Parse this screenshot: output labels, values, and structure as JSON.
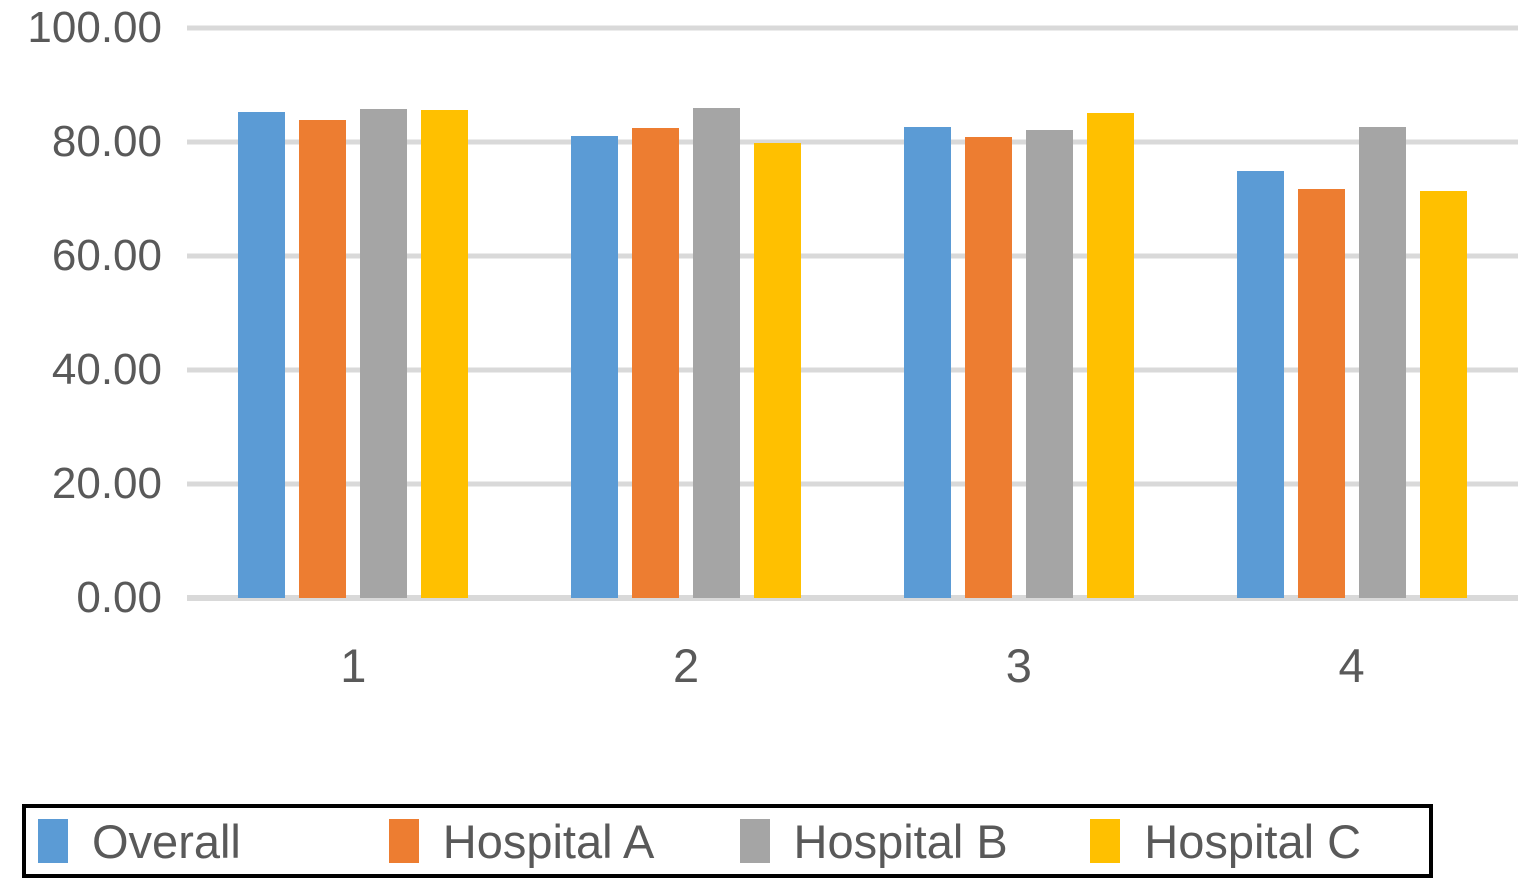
{
  "chart_data": {
    "type": "bar",
    "categories": [
      "1",
      "2",
      "3",
      "4"
    ],
    "series": [
      {
        "name": "Overall",
        "color": "#5B9BD5",
        "values": [
          85.2,
          81.1,
          82.7,
          74.9
        ]
      },
      {
        "name": "Hospital A",
        "color": "#ED7D31",
        "values": [
          83.8,
          82.5,
          80.8,
          71.7
        ]
      },
      {
        "name": "Hospital B",
        "color": "#A5A5A5",
        "values": [
          85.8,
          85.9,
          82.1,
          82.7
        ]
      },
      {
        "name": "Hospital C",
        "color": "#FFC000",
        "values": [
          85.7,
          79.8,
          85.1,
          71.4
        ]
      }
    ],
    "title": "",
    "xlabel": "",
    "ylabel": "",
    "ylim": [
      0,
      100
    ],
    "yticks": [
      {
        "value": 100,
        "label": "100.00"
      },
      {
        "value": 80,
        "label": "80.00"
      },
      {
        "value": 60,
        "label": "60.00"
      },
      {
        "value": 40,
        "label": "40.00"
      },
      {
        "value": 20,
        "label": "20.00"
      },
      {
        "value": 0,
        "label": "0.00"
      }
    ],
    "grid": true,
    "legend_position": "bottom",
    "colors": {
      "tick_text": "#595959",
      "gridline": "#D9D9D9",
      "legend_border": "#000000",
      "background": "#FFFFFF"
    }
  }
}
